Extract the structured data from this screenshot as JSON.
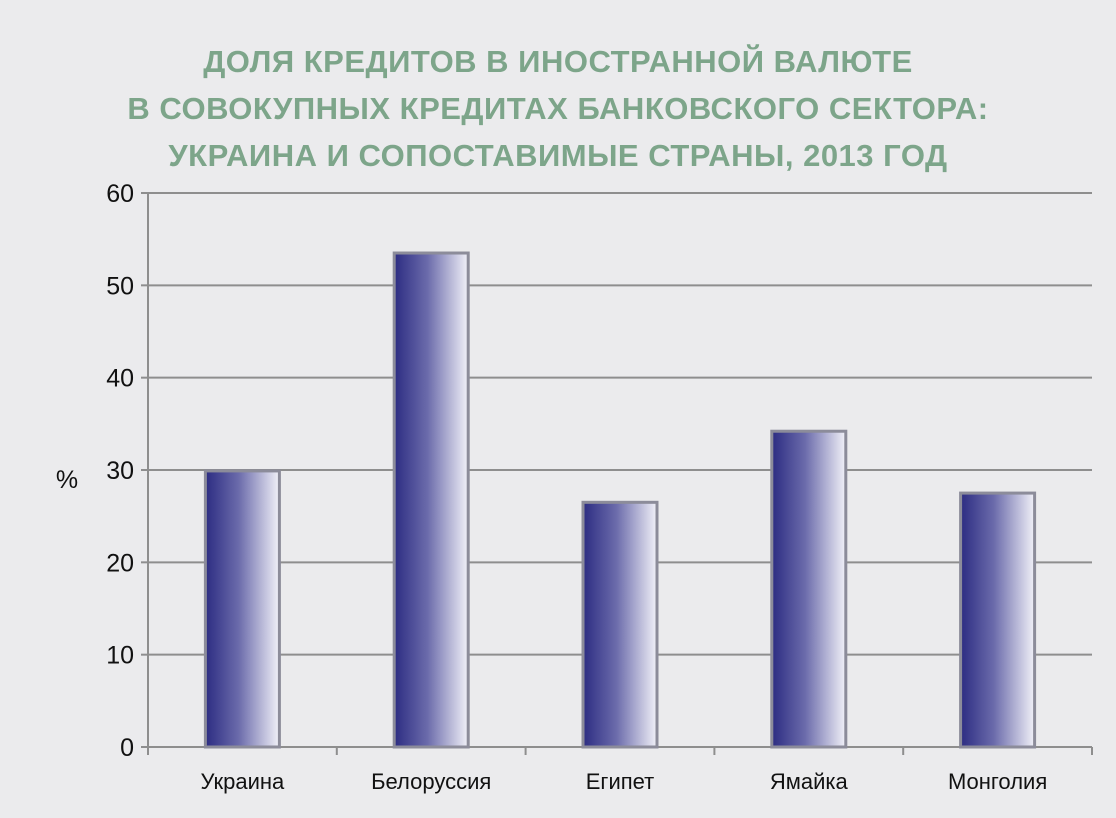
{
  "chart_data": {
    "type": "bar",
    "title_lines": [
      "ДОЛЯ КРЕДИТОВ В ИНОСТРАННОЙ ВАЛЮТЕ",
      "В СОВОКУПНЫХ КРЕДИТАХ БАНКОВСКОГО СЕКТОРА:",
      "УКРАИНА И СОПОСТАВИМЫЕ СТРАНЫ, 2013 ГОД"
    ],
    "categories": [
      "Украина",
      "Белоруссия",
      "Египет",
      "Ямайка",
      "Монголия"
    ],
    "values": [
      29.9,
      53.5,
      26.5,
      34.2,
      27.5
    ],
    "xlabel": "",
    "ylabel": "%",
    "ylim": [
      0,
      60
    ],
    "yticks": [
      0,
      10,
      20,
      30,
      40,
      50,
      60
    ],
    "grid": true,
    "legend": "none",
    "colors": {
      "title": "#7da58a",
      "bar_dark": "#2c2c82",
      "bar_light": "#f1f1f8",
      "bar_outline": "#8c8c9a",
      "grid": "#8e8e8e",
      "axis": "#8e8e8e",
      "background": "#ebebed"
    }
  }
}
